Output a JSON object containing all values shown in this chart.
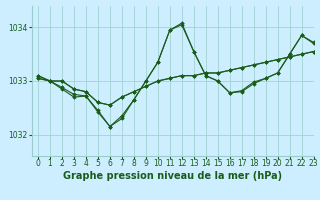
{
  "title": "Graphe pression niveau de la mer (hPa)",
  "bg_color": "#cceeff",
  "grid_color": "#99cccc",
  "line_color": "#1a5c1a",
  "ylim": [
    1031.6,
    1034.4
  ],
  "xlim": [
    -0.5,
    23
  ],
  "yticks": [
    1032,
    1033,
    1034
  ],
  "xticks": [
    0,
    1,
    2,
    3,
    4,
    5,
    6,
    7,
    8,
    9,
    10,
    11,
    12,
    13,
    14,
    15,
    16,
    17,
    18,
    19,
    20,
    21,
    22,
    23
  ],
  "series": [
    [
      1033.05,
      1033.0,
      1033.0,
      1032.85,
      1032.8,
      1032.6,
      1032.55,
      1032.7,
      1032.8,
      1032.9,
      1033.0,
      1033.05,
      1033.1,
      1033.1,
      1033.15,
      1033.15,
      1033.2,
      1033.25,
      1033.3,
      1033.35,
      1033.4,
      1033.45,
      1033.5,
      1033.55
    ],
    [
      1033.05,
      1033.0,
      1033.0,
      1032.85,
      1032.8,
      1032.6,
      1032.55,
      1032.7,
      1032.8,
      1032.9,
      1033.0,
      1033.05,
      1033.1,
      1033.1,
      1033.15,
      1033.15,
      1033.2,
      1033.25,
      1033.3,
      1033.35,
      1033.4,
      1033.45,
      1033.5,
      1033.55
    ],
    [
      1033.1,
      1033.0,
      1032.88,
      1032.75,
      1032.72,
      1032.45,
      1032.15,
      1032.35,
      1032.65,
      1033.0,
      1033.35,
      1033.95,
      1034.05,
      1033.55,
      1033.1,
      1033.0,
      1032.78,
      1032.82,
      1032.98,
      1033.05,
      1033.15,
      1033.5,
      1033.85,
      1033.7
    ],
    [
      1033.1,
      1033.0,
      1032.85,
      1032.7,
      1032.72,
      1032.42,
      1032.15,
      1032.3,
      1032.65,
      1033.0,
      1033.35,
      1033.95,
      1034.08,
      1033.55,
      1033.1,
      1033.0,
      1032.78,
      1032.8,
      1032.95,
      1033.05,
      1033.15,
      1033.5,
      1033.85,
      1033.72
    ]
  ],
  "marker": "D",
  "markersize": 1.8,
  "linewidth": 0.8,
  "title_fontsize": 7,
  "tick_fontsize": 5.5,
  "tick_color": "#1a5c1a"
}
